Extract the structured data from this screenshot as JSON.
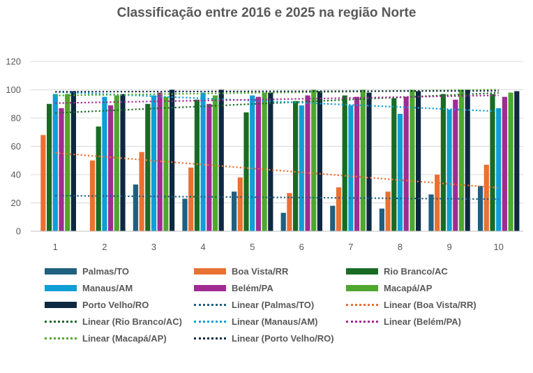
{
  "chart_data": {
    "type": "bar",
    "title": "Classificação entre 2016 e 2025 na região Norte",
    "xlabel": "",
    "ylabel": "",
    "categories": [
      "1",
      "2",
      "3",
      "4",
      "5",
      "6",
      "7",
      "8",
      "9",
      "10"
    ],
    "ylim": [
      0,
      120
    ],
    "yticks": [
      0,
      20,
      40,
      60,
      80,
      100,
      120
    ],
    "grid": "horizontal",
    "legend_position": "bottom",
    "series": [
      {
        "name": "Palmas/TO",
        "color": "#1f5f80",
        "values": [
          null,
          null,
          33,
          23,
          28,
          13,
          18,
          16,
          26,
          32
        ]
      },
      {
        "name": "Boa Vista/RR",
        "color": "#e97132",
        "values": [
          68,
          50,
          56,
          45,
          38,
          27,
          31,
          28,
          40,
          47
        ]
      },
      {
        "name": "Rio Branco/AC",
        "color": "#196b24",
        "values": [
          90,
          74,
          90,
          93,
          84,
          92,
          96,
          94,
          97,
          97
        ]
      },
      {
        "name": "Manaus/AM",
        "color": "#0f9ed5",
        "values": [
          97,
          95,
          96,
          98,
          96,
          89,
          89,
          83,
          86,
          87
        ]
      },
      {
        "name": "Belém/PA",
        "color": "#a02b93",
        "values": [
          87,
          89,
          98,
          90,
          95,
          96,
          95,
          95,
          93,
          95
        ]
      },
      {
        "name": "Macapá/AP",
        "color": "#4ea72e",
        "values": [
          97,
          96,
          95,
          96,
          98,
          100,
          100,
          100,
          100,
          98
        ]
      },
      {
        "name": "Porto Velho/RO",
        "color": "#0e2841",
        "values": [
          99,
          97,
          100,
          100,
          98,
          99,
          98,
          99,
          100,
          99
        ]
      }
    ],
    "trendlines": [
      {
        "name": "Linear (Palmas/TO)",
        "color": "#1f5f80",
        "type": "linear",
        "from_category": "1",
        "to_category": "10"
      },
      {
        "name": "Linear (Boa Vista/RR)",
        "color": "#e97132",
        "type": "linear",
        "from_category": "1",
        "to_category": "10"
      },
      {
        "name": "Linear (Rio Branco/AC)",
        "color": "#196b24",
        "type": "linear",
        "from_category": "1",
        "to_category": "10"
      },
      {
        "name": "Linear (Manaus/AM)",
        "color": "#0f9ed5",
        "type": "linear",
        "from_category": "1",
        "to_category": "10"
      },
      {
        "name": "Linear (Belém/PA)",
        "color": "#a02b93",
        "type": "linear",
        "from_category": "1",
        "to_category": "10"
      },
      {
        "name": "Linear (Macapá/AP)",
        "color": "#4ea72e",
        "type": "linear",
        "from_category": "1",
        "to_category": "10"
      },
      {
        "name": "Linear (Porto Velho/RO)",
        "color": "#0e2841",
        "type": "linear",
        "from_category": "1",
        "to_category": "10"
      }
    ]
  },
  "styles": {
    "text_color": "#595959",
    "grid_color": "#d9d9d9",
    "axis_color": "#bfbfbf"
  }
}
